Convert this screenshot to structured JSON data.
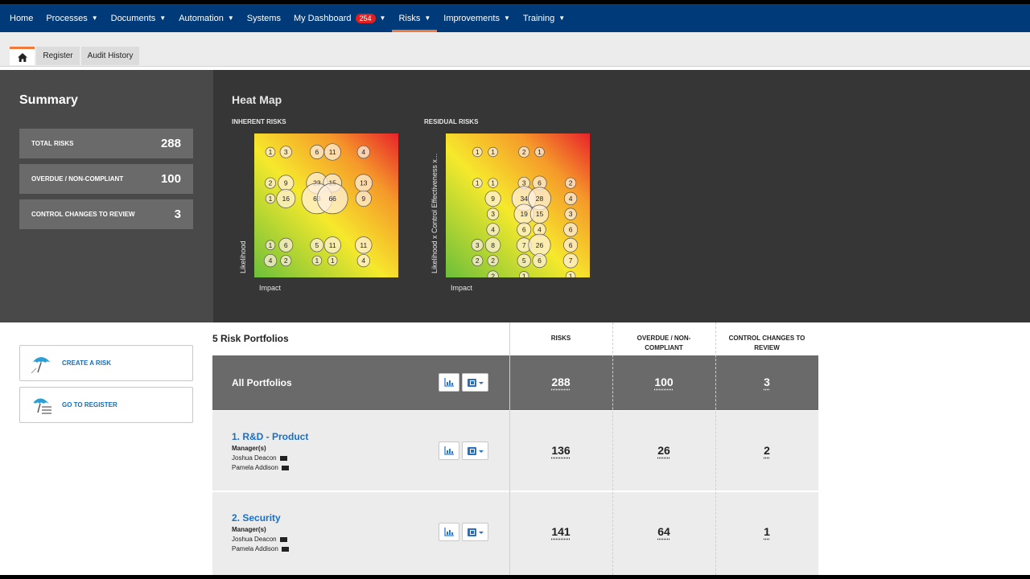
{
  "nav": {
    "items": [
      {
        "label": "Home",
        "dropdown": false
      },
      {
        "label": "Processes",
        "dropdown": true
      },
      {
        "label": "Documents",
        "dropdown": true
      },
      {
        "label": "Automation",
        "dropdown": true
      },
      {
        "label": "Systems",
        "dropdown": false
      },
      {
        "label": "My Dashboard",
        "dropdown": true,
        "badge": "254"
      },
      {
        "label": "Risks",
        "dropdown": true,
        "active": true
      },
      {
        "label": "Improvements",
        "dropdown": true
      },
      {
        "label": "Training",
        "dropdown": true
      }
    ],
    "accent": "#f07a3c",
    "background": "#003a78"
  },
  "tabs": {
    "home_icon": "home-icon",
    "register": "Register",
    "audit_history": "Audit History"
  },
  "summary": {
    "title": "Summary",
    "stats": [
      {
        "label": "TOTAL RISKS",
        "value": "288"
      },
      {
        "label": "OVERDUE / NON-COMPLIANT",
        "value": "100"
      },
      {
        "label": "CONTROL CHANGES TO REVIEW",
        "value": "3"
      }
    ]
  },
  "heatmap": {
    "title": "Heat Map",
    "inherent": {
      "title": "INHERENT RISKS",
      "xlabel": "Impact",
      "ylabel": "Likelihood",
      "bubbles": [
        {
          "v": "1",
          "col": 1,
          "row": 1
        },
        {
          "v": "3",
          "col": 2,
          "row": 1
        },
        {
          "v": "6",
          "col": 4,
          "row": 1
        },
        {
          "v": "11",
          "col": 5,
          "row": 1
        },
        {
          "v": "4",
          "col": 7,
          "row": 1
        },
        {
          "v": "2",
          "col": 1,
          "row": 3
        },
        {
          "v": "9",
          "col": 2,
          "row": 3
        },
        {
          "v": "23",
          "col": 4,
          "row": 3
        },
        {
          "v": "15",
          "col": 5,
          "row": 3
        },
        {
          "v": "13",
          "col": 7,
          "row": 3
        },
        {
          "v": "1",
          "col": 1,
          "row": 4
        },
        {
          "v": "16",
          "col": 2,
          "row": 4
        },
        {
          "v": "63",
          "col": 4,
          "row": 4
        },
        {
          "v": "66",
          "col": 5,
          "row": 4
        },
        {
          "v": "9",
          "col": 7,
          "row": 4
        },
        {
          "v": "1",
          "col": 1,
          "row": 7
        },
        {
          "v": "6",
          "col": 2,
          "row": 7
        },
        {
          "v": "5",
          "col": 4,
          "row": 7
        },
        {
          "v": "11",
          "col": 5,
          "row": 7
        },
        {
          "v": "11",
          "col": 7,
          "row": 7
        },
        {
          "v": "4",
          "col": 1,
          "row": 8
        },
        {
          "v": "2",
          "col": 2,
          "row": 8
        },
        {
          "v": "1",
          "col": 4,
          "row": 8
        },
        {
          "v": "1",
          "col": 5,
          "row": 8
        },
        {
          "v": "4",
          "col": 7,
          "row": 8
        }
      ]
    },
    "residual": {
      "title": "RESIDUAL RISKS",
      "xlabel": "Impact",
      "ylabel": "Likelihood x Control Effectiveness x...",
      "bubbles": [
        {
          "v": "1",
          "col": 2,
          "row": 1
        },
        {
          "v": "1",
          "col": 3,
          "row": 1
        },
        {
          "v": "2",
          "col": 5,
          "row": 1
        },
        {
          "v": "1",
          "col": 6,
          "row": 1
        },
        {
          "v": "1",
          "col": 2,
          "row": 3
        },
        {
          "v": "1",
          "col": 3,
          "row": 3
        },
        {
          "v": "3",
          "col": 5,
          "row": 3
        },
        {
          "v": "6",
          "col": 6,
          "row": 3
        },
        {
          "v": "2",
          "col": 8,
          "row": 3
        },
        {
          "v": "9",
          "col": 3,
          "row": 4
        },
        {
          "v": "34",
          "col": 5,
          "row": 4
        },
        {
          "v": "28",
          "col": 6,
          "row": 4
        },
        {
          "v": "4",
          "col": 8,
          "row": 4
        },
        {
          "v": "3",
          "col": 3,
          "row": 5
        },
        {
          "v": "19",
          "col": 5,
          "row": 5
        },
        {
          "v": "15",
          "col": 6,
          "row": 5
        },
        {
          "v": "3",
          "col": 8,
          "row": 5
        },
        {
          "v": "4",
          "col": 3,
          "row": 6
        },
        {
          "v": "6",
          "col": 5,
          "row": 6
        },
        {
          "v": "4",
          "col": 6,
          "row": 6
        },
        {
          "v": "6",
          "col": 8,
          "row": 6
        },
        {
          "v": "3",
          "col": 2,
          "row": 7
        },
        {
          "v": "8",
          "col": 3,
          "row": 7
        },
        {
          "v": "7",
          "col": 5,
          "row": 7
        },
        {
          "v": "26",
          "col": 6,
          "row": 7
        },
        {
          "v": "6",
          "col": 8,
          "row": 7
        },
        {
          "v": "2",
          "col": 2,
          "row": 8
        },
        {
          "v": "2",
          "col": 3,
          "row": 8
        },
        {
          "v": "5",
          "col": 5,
          "row": 8
        },
        {
          "v": "6",
          "col": 6,
          "row": 8
        },
        {
          "v": "7",
          "col": 8,
          "row": 8
        },
        {
          "v": "2",
          "col": 3,
          "row": 9
        },
        {
          "v": "1",
          "col": 5,
          "row": 9
        },
        {
          "v": "1",
          "col": 8,
          "row": 9
        }
      ]
    }
  },
  "actions": {
    "create_risk": "CREATE A RISK",
    "go_register": "GO TO REGISTER"
  },
  "portfolios": {
    "title": "5 Risk Portfolios",
    "headers": {
      "risks": "RISKS",
      "overdue": "OVERDUE / NON-COMPLIANT",
      "control": "CONTROL CHANGES TO REVIEW"
    },
    "all": {
      "name": "All Portfolios",
      "risks": "288",
      "overdue": "100",
      "control": "3"
    },
    "rows": [
      {
        "name": "1. R&D - Product",
        "managers_label": "Manager(s)",
        "managers": [
          "Joshua Deacon",
          "Pamela Addison"
        ],
        "risks": "136",
        "overdue": "26",
        "control": "2"
      },
      {
        "name": "2. Security",
        "managers_label": "Manager(s)",
        "managers": [
          "Joshua Deacon",
          "Pamela Addison"
        ],
        "risks": "141",
        "overdue": "64",
        "control": "1"
      }
    ]
  }
}
